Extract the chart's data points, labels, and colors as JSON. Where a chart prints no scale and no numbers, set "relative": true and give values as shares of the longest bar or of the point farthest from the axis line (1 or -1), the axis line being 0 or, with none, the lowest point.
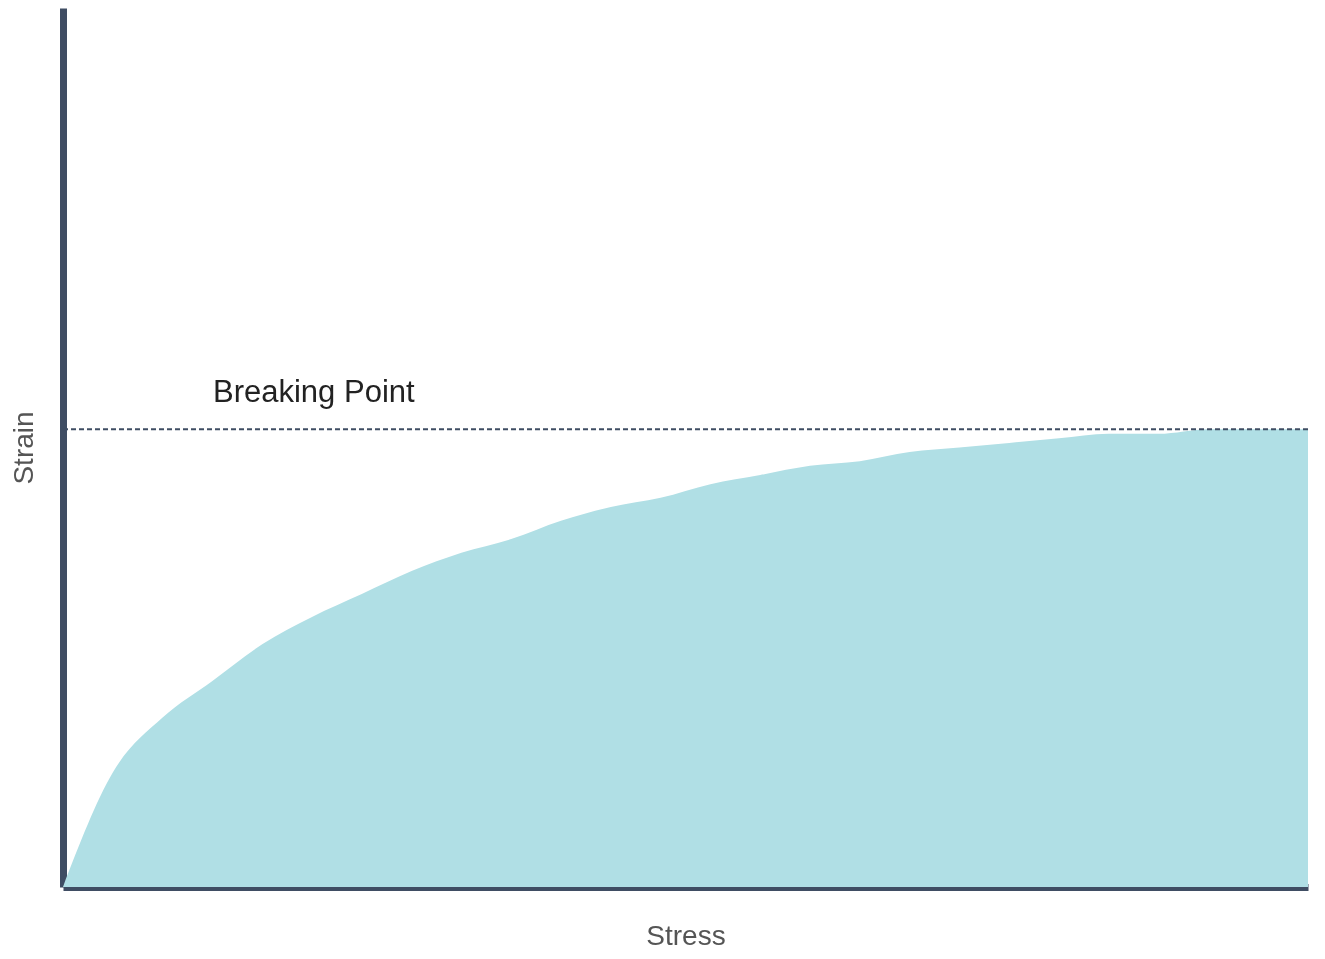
{
  "chart_data": {
    "type": "area",
    "relative": true,
    "xlabel": "Stress",
    "ylabel": "Strain",
    "categories": [
      null,
      null,
      null,
      null,
      null,
      null,
      null,
      null,
      null,
      null,
      null,
      null,
      null,
      null,
      null,
      null,
      null,
      null,
      null,
      null,
      null,
      null,
      null,
      null,
      null,
      null
    ],
    "series": [
      {
        "color": "#b0dfe5",
        "values": [
          0,
          0.25,
          0.37,
          0.45,
          0.53,
          0.59,
          0.64,
          0.69,
          0.73,
          0.76,
          0.8,
          0.83,
          0.85,
          0.88,
          0.9,
          0.92,
          0.93,
          0.95,
          0.96,
          0.97,
          0.98,
          0.99,
          0.99,
          1,
          1,
          1
        ]
      }
    ],
    "ref_lines": [
      {
        "axis": "y",
        "value": 1,
        "label": "Breaking Point",
        "color": "#3f4d63",
        "line_style": "dashed"
      }
    ]
  }
}
